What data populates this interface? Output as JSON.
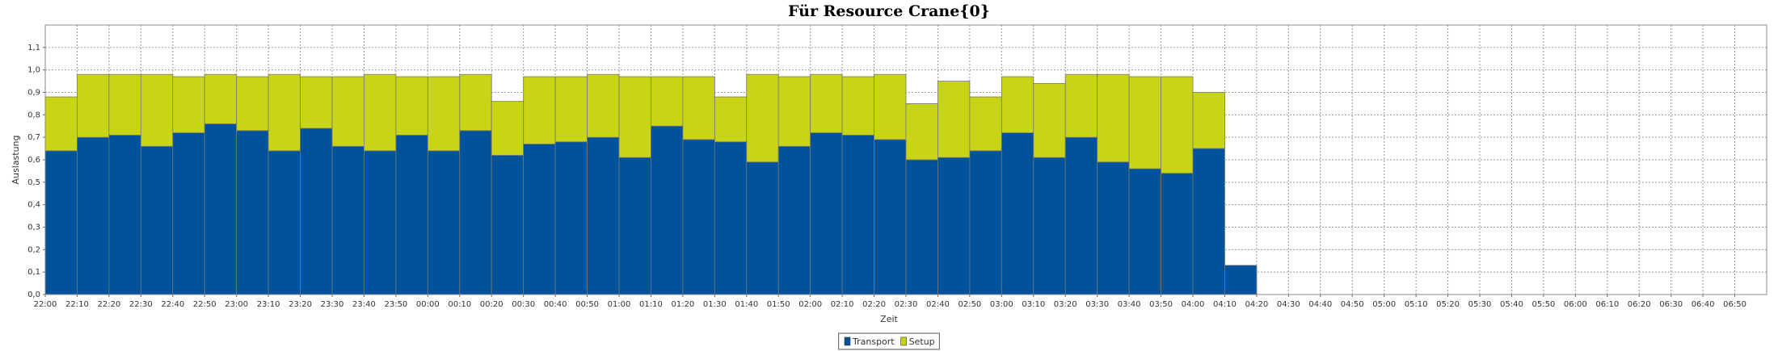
{
  "chart_data": {
    "type": "stacked_bar",
    "title": "Für Resource Crane{0}",
    "x_label": "Zeit",
    "y_label": "Auslastung",
    "categories": [
      "22:00",
      "22:10",
      "22:20",
      "22:30",
      "22:40",
      "22:50",
      "23:00",
      "23:10",
      "23:20",
      "23:30",
      "23:40",
      "23:50",
      "00:00",
      "00:10",
      "00:20",
      "00:30",
      "00:40",
      "00:50",
      "01:00",
      "01:10",
      "01:20",
      "01:30",
      "01:40",
      "01:50",
      "02:00",
      "02:10",
      "02:20",
      "02:30",
      "02:40",
      "02:50",
      "03:00",
      "03:10",
      "03:20",
      "03:30",
      "03:40",
      "03:50",
      "04:00",
      "04:10",
      "04:20",
      "04:30",
      "04:40",
      "04:50",
      "05:00",
      "05:10",
      "05:20",
      "05:30",
      "05:40",
      "05:50",
      "06:00",
      "06:10",
      "06:20",
      "06:30",
      "06:40",
      "06:50"
    ],
    "series": [
      {
        "name": "Transport",
        "color": "#00529b",
        "values": [
          0.64,
          0.7,
          0.71,
          0.66,
          0.72,
          0.76,
          0.73,
          0.64,
          0.74,
          0.66,
          0.64,
          0.71,
          0.64,
          0.73,
          0.62,
          0.67,
          0.68,
          0.7,
          0.61,
          0.75,
          0.69,
          0.68,
          0.59,
          0.66,
          0.72,
          0.71,
          0.69,
          0.6,
          0.61,
          0.64,
          0.72,
          0.61,
          0.7,
          0.59,
          0.56,
          0.54,
          0.65,
          0.13,
          null,
          null,
          null,
          null,
          null,
          null,
          null,
          null,
          null,
          null,
          null,
          null,
          null,
          null,
          null,
          null
        ]
      },
      {
        "name": "Setup",
        "color": "#c8d416",
        "values": [
          0.24,
          0.28,
          0.27,
          0.32,
          0.25,
          0.22,
          0.24,
          0.34,
          0.23,
          0.31,
          0.34,
          0.26,
          0.33,
          0.25,
          0.24,
          0.3,
          0.29,
          0.28,
          0.36,
          0.22,
          0.28,
          0.2,
          0.39,
          0.31,
          0.26,
          0.26,
          0.29,
          0.25,
          0.34,
          0.24,
          0.25,
          0.33,
          0.28,
          0.39,
          0.41,
          0.43,
          0.25,
          0,
          null,
          null,
          null,
          null,
          null,
          null,
          null,
          null,
          null,
          null,
          null,
          null,
          null,
          null,
          null,
          null
        ]
      }
    ],
    "ylim": [
      0,
      1.2
    ],
    "yticks": [
      {
        "value": 0,
        "label": "0,0"
      },
      {
        "value": 0.1,
        "label": "0,1"
      },
      {
        "value": 0.2,
        "label": "0,2"
      },
      {
        "value": 0.3,
        "label": "0,3"
      },
      {
        "value": 0.4,
        "label": "0,4"
      },
      {
        "value": 0.5,
        "label": "0,5"
      },
      {
        "value": 0.6,
        "label": "0,6"
      },
      {
        "value": 0.7,
        "label": "0,7"
      },
      {
        "value": 0.8,
        "label": "0,8"
      },
      {
        "value": 0.9,
        "label": "0,9"
      },
      {
        "value": 1.0,
        "label": "1,0"
      },
      {
        "value": 1.1,
        "label": "1,1"
      }
    ],
    "grid": true,
    "legend": "bottom"
  }
}
